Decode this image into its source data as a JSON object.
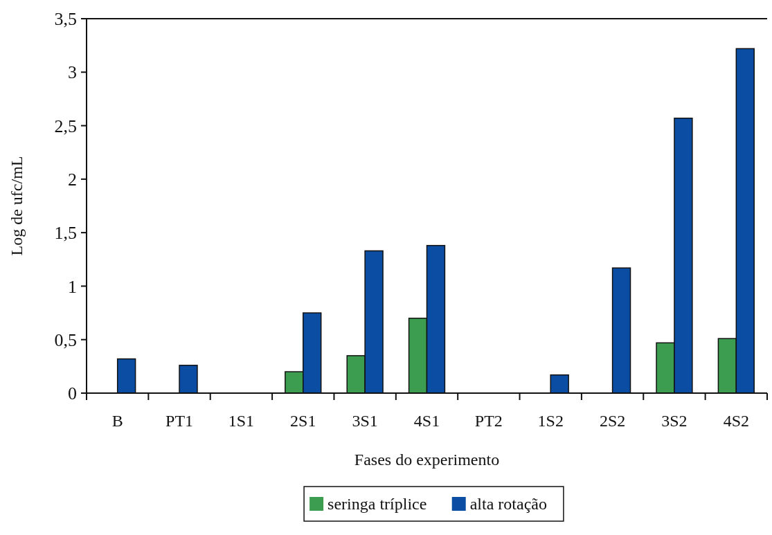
{
  "chart_data": {
    "type": "bar",
    "xlabel": "Fases do experimento",
    "ylabel": "Log de ufc/mL",
    "categories": [
      "B",
      "PT1",
      "1S1",
      "2S1",
      "3S1",
      "4S1",
      "PT2",
      "1S2",
      "2S2",
      "3S2",
      "4S2"
    ],
    "series": [
      {
        "name": "seringa tríplice",
        "color": "#3c9c50",
        "values": [
          0,
          0,
          0,
          0.2,
          0.35,
          0.7,
          0,
          0,
          0,
          0.47,
          0.51
        ]
      },
      {
        "name": "alta rotação",
        "color": "#0b4da2",
        "values": [
          0.32,
          0.26,
          0,
          0.75,
          1.33,
          1.38,
          0,
          0.17,
          1.17,
          2.57,
          3.22
        ]
      }
    ],
    "ylim": [
      0,
      3.5
    ],
    "yticks": [
      0,
      {
        "value": 0.5,
        "label": "0,5"
      },
      1,
      {
        "value": 1.5,
        "label": "1,5"
      },
      2,
      {
        "value": 2.5,
        "label": "2,5"
      },
      3,
      {
        "value": 3.5,
        "label": "3,5"
      }
    ],
    "grid": false,
    "legend": "bottom"
  }
}
